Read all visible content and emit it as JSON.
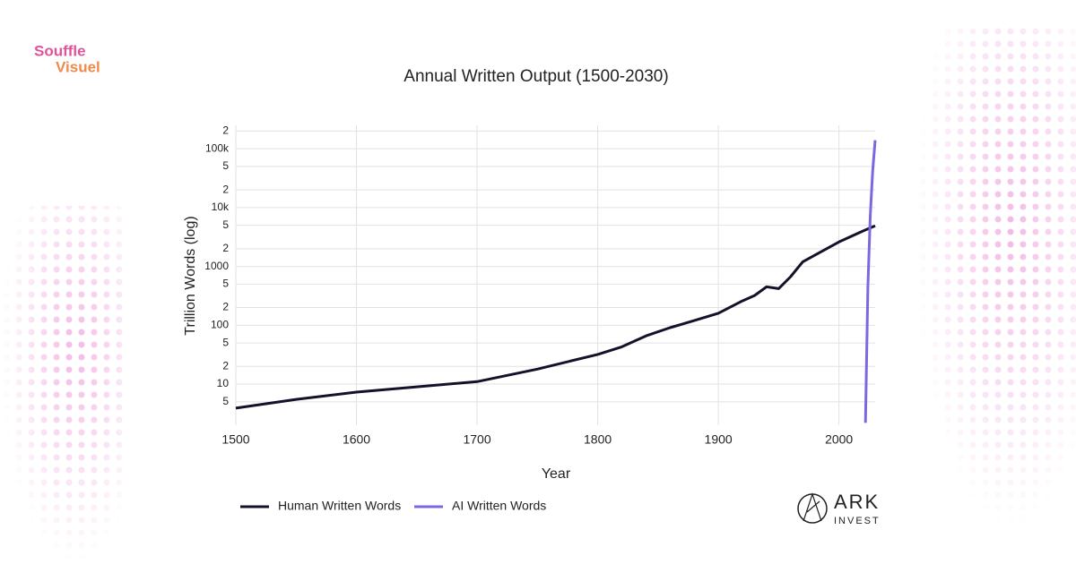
{
  "brand": {
    "souffle": [
      "Souffle",
      "Visuel"
    ],
    "ark": [
      "ARK",
      "INVEST"
    ]
  },
  "chart_data": {
    "type": "line",
    "title": "Annual Written Output (1500-2030)",
    "x_label": "Year",
    "y_label": "Trillion Words (log)",
    "xlim": [
      1500,
      2030
    ],
    "xticks": [
      1500,
      1600,
      1700,
      1800,
      1900,
      2000
    ],
    "ylim": [
      2,
      250000
    ],
    "log_y": true,
    "grid": true,
    "legend": "bottom-left",
    "yticks": [
      5,
      10,
      {
        "value": 20,
        "label": "2"
      },
      {
        "value": 50,
        "label": "5"
      },
      100,
      {
        "value": 200,
        "label": "2"
      },
      {
        "value": 500,
        "label": "5"
      },
      1000,
      {
        "value": 2000,
        "label": "2"
      },
      {
        "value": 5000,
        "label": "5"
      },
      {
        "value": 10000,
        "label": "10k"
      },
      {
        "value": 20000,
        "label": "2"
      },
      {
        "value": 50000,
        "label": "5"
      },
      {
        "value": 100000,
        "label": "100k"
      },
      {
        "value": 200000,
        "label": "2"
      }
    ],
    "series": [
      {
        "name": "Human Written Words",
        "color": "#14112a",
        "x": [
          1500,
          1550,
          1600,
          1650,
          1700,
          1750,
          1800,
          1820,
          1840,
          1860,
          1880,
          1900,
          1920,
          1930,
          1940,
          1950,
          1960,
          1970,
          1980,
          2000,
          2020,
          2030
        ],
        "values": [
          3.9,
          5.5,
          7.3,
          9,
          11,
          18,
          32,
          43,
          66,
          91,
          120,
          160,
          260,
          320,
          450,
          420,
          670,
          1200,
          1550,
          2600,
          4000,
          4900
        ]
      },
      {
        "name": "AI Written Words",
        "color": "#7b68e0",
        "x": [
          2022,
          2024,
          2026,
          2028,
          2030
        ],
        "values": [
          2.2,
          450,
          7500,
          43000,
          140000
        ]
      }
    ]
  }
}
